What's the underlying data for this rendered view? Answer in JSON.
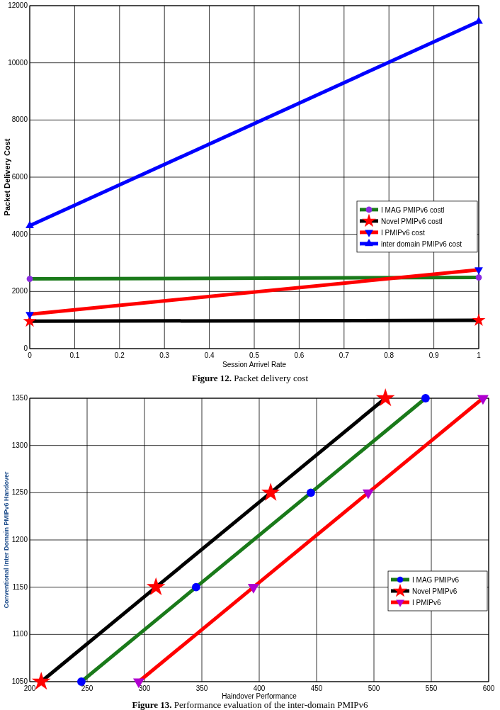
{
  "chart_data": [
    {
      "type": "line",
      "title": "Figure 12. Packet delivery cost",
      "xlabel": "Session Arrivel Rate",
      "ylabel": "Packet Delivery Cost",
      "x": [
        0,
        1
      ],
      "xlim": [
        0,
        1
      ],
      "xticks": [
        0,
        0.1,
        0.2,
        0.3,
        0.4,
        0.5,
        0.6,
        0.7,
        0.8,
        0.9,
        1
      ],
      "ylim": [
        0,
        12000
      ],
      "yticks": [
        0,
        2000,
        4000,
        6000,
        8000,
        10000,
        12000
      ],
      "grid": true,
      "legend": "right",
      "line_style": "solid",
      "series": [
        {
          "name": "I MAG PMIPv6 costl",
          "color": "#1a7a1a",
          "marker": "circle",
          "colors": [
            "#8a2be2",
            "#8a2be2"
          ],
          "values": [
            2440,
            2490
          ]
        },
        {
          "name": "Novel PMIPv6 costl",
          "color": "#000000",
          "marker": "star",
          "colors": [
            "#ff0000",
            "#ff0000"
          ],
          "values": [
            960,
            990
          ]
        },
        {
          "name": "I PMIPv6 cost",
          "color": "#ff0000",
          "marker": "triangle-down",
          "colors": [
            "#0000ff",
            "#0000ff"
          ],
          "values": [
            1200,
            2760
          ]
        },
        {
          "name": "inter domain PMIPv6 cost",
          "color": "#0000ff",
          "marker": "triangle",
          "colors": [
            "#0000ff",
            "#0000ff"
          ],
          "values": [
            4300,
            11450
          ]
        }
      ]
    },
    {
      "type": "line",
      "title": "Figure 13. Performance evaluation of the inter-domain PMIPv6",
      "xlabel": "Haindover Performance",
      "ylabel": "Conventional Inter Domain PMIPv6 Handover",
      "xlim": [
        200,
        600
      ],
      "xticks": [
        200,
        250,
        300,
        350,
        400,
        450,
        500,
        550,
        600
      ],
      "ylim": [
        1050,
        1350
      ],
      "yticks": [
        1050,
        1100,
        1150,
        1200,
        1250,
        1300,
        1350
      ],
      "grid": true,
      "legend": "bottom right",
      "line_style": "solid",
      "series": [
        {
          "name": "I MAG PMIPv6",
          "color": "#1a7a1a",
          "marker": "circle",
          "colors": [
            "#0000ff",
            "#0000ff",
            "#0000ff",
            "#0000ff"
          ],
          "x": [
            245,
            345,
            445,
            545
          ],
          "values": [
            1050,
            1150,
            1250,
            1350
          ]
        },
        {
          "name": "Novel PMIPv6",
          "color": "#000000",
          "marker": "star",
          "colors": [
            "#ff0000",
            "#ff0000",
            "#ff0000",
            "#ff0000"
          ],
          "x": [
            210,
            310,
            410,
            510
          ],
          "values": [
            1050,
            1150,
            1250,
            1350
          ]
        },
        {
          "name": "I PMIPv6",
          "color": "#ff0000",
          "marker": "triangle-down",
          "colors": [
            "#b000d0",
            "#b000d0",
            "#b000d0",
            "#b000d0"
          ],
          "x": [
            295,
            395,
            495,
            595
          ],
          "values": [
            1050,
            1150,
            1250,
            1350
          ]
        }
      ]
    }
  ]
}
